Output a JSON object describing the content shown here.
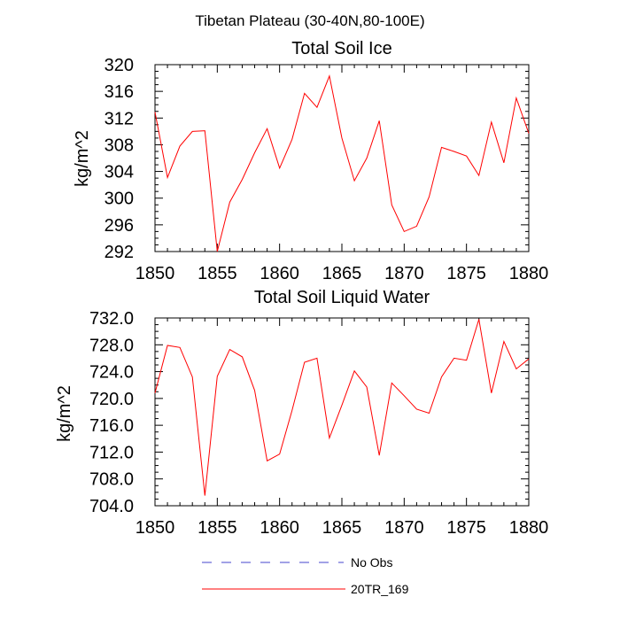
{
  "title": "Tibetan Plateau (30-40N,80-100E)",
  "legend": [
    {
      "label": "No Obs",
      "color": "#4444cc",
      "style": "dashed"
    },
    {
      "label": "20TR_169",
      "color": "#ff0000",
      "style": "solid"
    }
  ],
  "chart_data": [
    {
      "type": "line",
      "title": "Total Soil Ice",
      "ylabel": "kg/m^2",
      "xlabel": "",
      "xlim": [
        1850,
        1880
      ],
      "ylim": [
        292,
        320
      ],
      "xticks": [
        1850,
        1855,
        1860,
        1865,
        1870,
        1875,
        1880
      ],
      "yticks": [
        "292",
        "296",
        "300",
        "304",
        "308",
        "312",
        "316",
        "320"
      ],
      "grid": false,
      "series": [
        {
          "name": "20TR_169",
          "color": "#ff0000",
          "x": [
            1850,
            1851,
            1852,
            1853,
            1854,
            1855,
            1856,
            1857,
            1858,
            1859,
            1860,
            1861,
            1862,
            1863,
            1864,
            1865,
            1866,
            1867,
            1868,
            1869,
            1870,
            1871,
            1872,
            1873,
            1874,
            1875,
            1876,
            1877,
            1878,
            1879,
            1880
          ],
          "values": [
            312.9,
            303.1,
            307.8,
            310.0,
            310.1,
            292.0,
            299.4,
            302.8,
            306.8,
            310.4,
            304.5,
            308.8,
            315.7,
            313.6,
            318.3,
            309.0,
            302.6,
            306.0,
            311.6,
            299.0,
            295.0,
            295.8,
            300.2,
            307.6,
            307.0,
            306.3,
            303.4,
            311.4,
            305.3,
            315.0,
            309.7
          ]
        }
      ]
    },
    {
      "type": "line",
      "title": "Total Soil Liquid Water",
      "ylabel": "kg/m^2",
      "xlabel": "",
      "xlim": [
        1850,
        1880
      ],
      "ylim": [
        704,
        732
      ],
      "xticks": [
        1850,
        1855,
        1860,
        1865,
        1870,
        1875,
        1880
      ],
      "yticks": [
        "704.0",
        "708.0",
        "712.0",
        "716.0",
        "720.0",
        "724.0",
        "728.0",
        "732.0"
      ],
      "grid": false,
      "series": [
        {
          "name": "20TR_169",
          "color": "#ff0000",
          "x": [
            1850,
            1851,
            1852,
            1853,
            1854,
            1855,
            1856,
            1857,
            1858,
            1859,
            1860,
            1861,
            1862,
            1863,
            1864,
            1865,
            1866,
            1867,
            1868,
            1869,
            1870,
            1871,
            1872,
            1873,
            1874,
            1875,
            1876,
            1877,
            1878,
            1879,
            1880
          ],
          "values": [
            720.8,
            727.9,
            727.6,
            723.2,
            705.5,
            723.3,
            727.3,
            726.2,
            721.2,
            710.7,
            711.7,
            718.2,
            725.4,
            726.0,
            714.1,
            719.0,
            724.1,
            721.7,
            711.5,
            722.3,
            720.4,
            718.4,
            717.8,
            723.2,
            726.0,
            725.7,
            731.8,
            720.8,
            728.5,
            724.4,
            725.9
          ]
        }
      ]
    }
  ]
}
